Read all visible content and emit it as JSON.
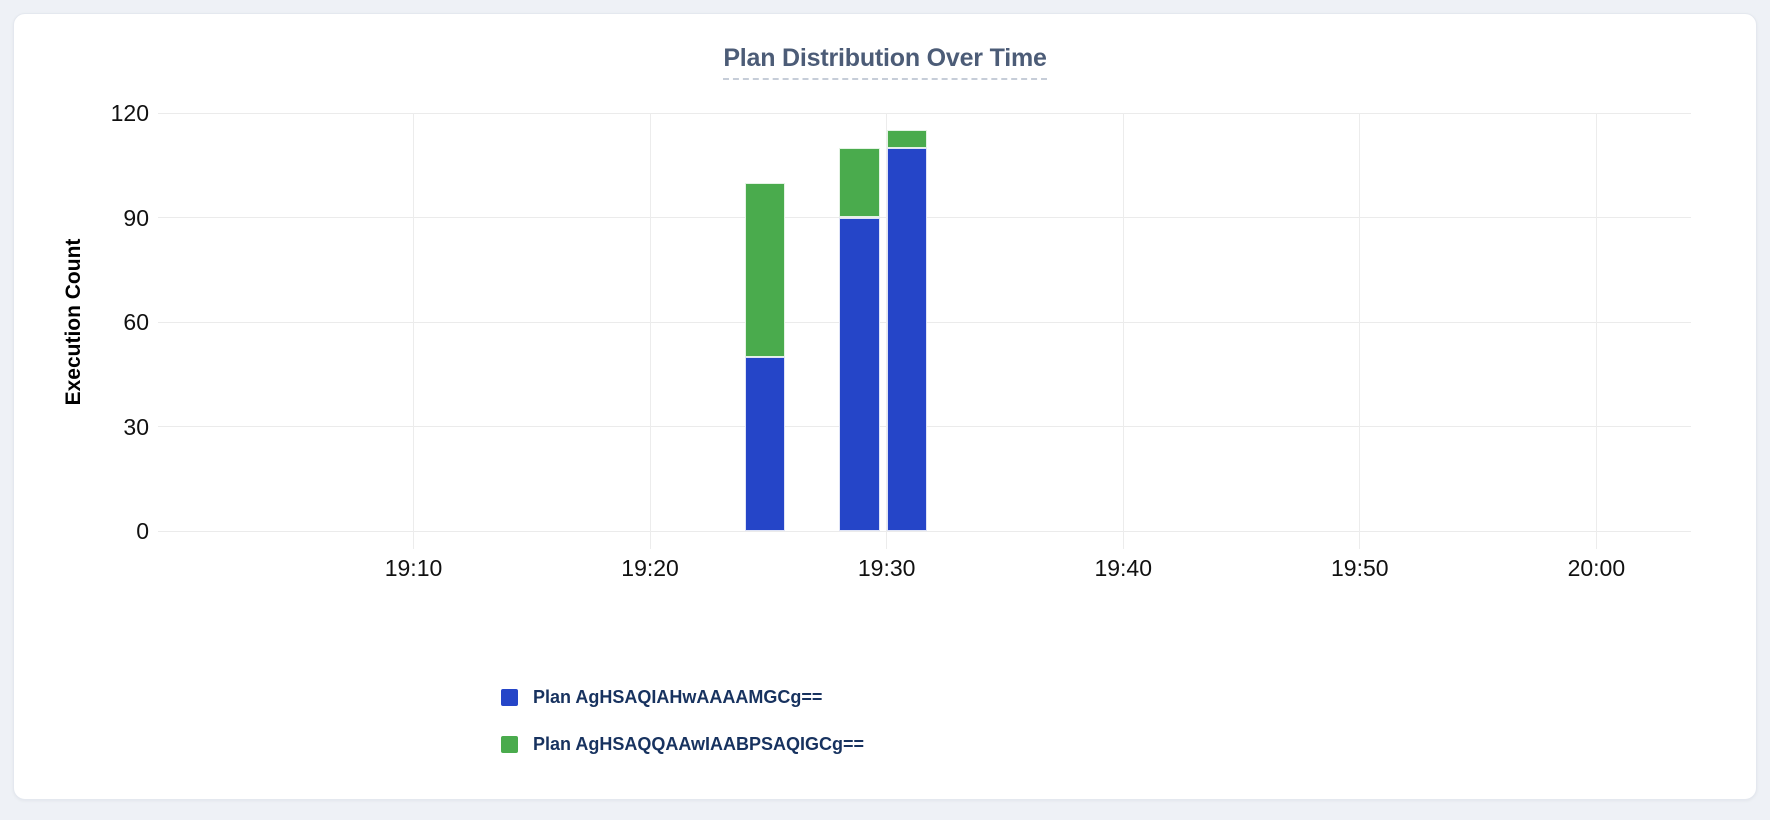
{
  "colors": {
    "page_background": "#eef1f6",
    "card_background": "#ffffff",
    "card_border": "#e4e8ef",
    "gridline": "#ebebeb",
    "axis_text": "#111111",
    "title_text": "#4c5c77",
    "title_underline": "#c6cdd8",
    "legend_text": "#17325f",
    "series_blue": "#2545c8",
    "series_green": "#4aab4d"
  },
  "chart_data": {
    "type": "bar",
    "stacked": true,
    "title": "Plan Distribution Over Time",
    "xlabel": "",
    "ylabel": "Execution Count",
    "ylim": [
      0,
      120
    ],
    "yticks": [
      0,
      30,
      60,
      90,
      120
    ],
    "x_tick_labels": [
      "19:10",
      "19:20",
      "19:30",
      "19:40",
      "19:50",
      "20:00"
    ],
    "x_tick_minutes": [
      10,
      20,
      30,
      40,
      50,
      60
    ],
    "x_axis_start_time": "19:00",
    "x_range_minutes": [
      -0.8,
      64
    ],
    "grid": true,
    "legend_position": "bottom-left",
    "categories": [
      "19:24",
      "19:28",
      "19:30"
    ],
    "bar_start_minutes": [
      24,
      28,
      30
    ],
    "bar_width_minutes": 1.7,
    "series": [
      {
        "name": "Plan AgHSAQIAHwAAAAMGCg==",
        "color": "#2545c8",
        "values": [
          50,
          90,
          110
        ]
      },
      {
        "name": "Plan AgHSAQQAAwIAABPSAQIGCg==",
        "color": "#4aab4d",
        "values": [
          50,
          20,
          5
        ]
      }
    ]
  }
}
